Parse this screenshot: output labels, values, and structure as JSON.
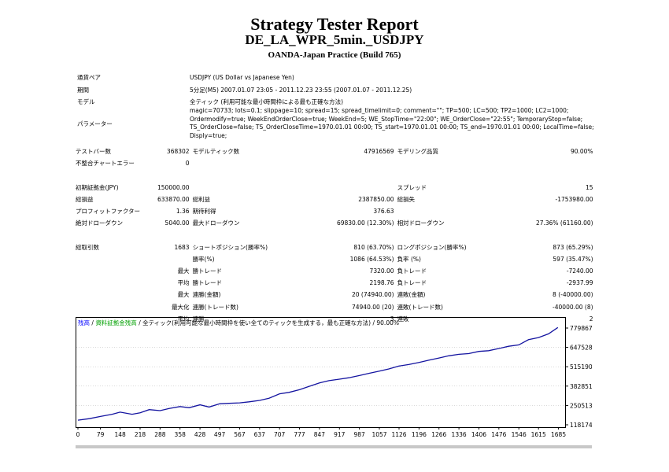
{
  "report": {
    "title": "Strategy Tester Report",
    "subtitle": "DE_LA_WPR_5min._USDJPY",
    "server": "OANDA-Japan Practice (Build 765)"
  },
  "info": {
    "symbol_label": "通貨ペア",
    "symbol_value": "USDJPY (US Dollar vs Japanese Yen)",
    "period_label": "期間",
    "period_value": "5分足(M5) 2007.01.07 23:05 - 2011.12.23 23:55 (2007.01.07 - 2011.12.25)",
    "model_label": "モデル",
    "model_value": "全ティック (利用可能な最小時間枠による最も正確な方法)",
    "params_label": "パラメーター",
    "params_value": "magic=70733; lots=0.1; slippage=10; spread=15; spread_timelimit=0; comment=\"\"; TP=500; LC=500; TP2=1000; LC2=1000;\nOrdermodify=true; WeekEndOrderClose=true; WeekEnd=5; WE_StopTime=\"22:00\"; WE_OrderClose=\"22:55\"; TemporaryStop=false;\nTS_OrderClose=false; TS_OrderCloseTime=1970.01.01 00:00; TS_start=1970.01.01 00:00; TS_end=1970.01.01 00:00; LocalTime=false;\nDisply=true;"
  },
  "stats_rows": [
    [
      "テストバー数",
      "368302",
      "モデルティック数",
      "47916569",
      "モデリング品質",
      "90.00%"
    ],
    [
      "不整合チャートエラー",
      "0",
      "",
      "",
      "",
      ""
    ],
    [
      "",
      "",
      "",
      "",
      "",
      ""
    ],
    [
      "初期証拠金(JPY)",
      "150000.00",
      "",
      "",
      "スプレッド",
      "15"
    ],
    [
      "総損益",
      "633870.00",
      "総利益",
      "2387850.00",
      "総損失",
      "-1753980.00"
    ],
    [
      "プロフィットファクター",
      "1.36",
      "期待利得",
      "376.63",
      "",
      ""
    ],
    [
      "絶対ドローダウン",
      "5040.00",
      "最大ドローダウン",
      "69830.00 (12.30%)",
      "相対ドローダウン",
      "27.36% (61160.00)"
    ],
    [
      "",
      "",
      "",
      "",
      "",
      ""
    ],
    [
      "総取引数",
      "1683",
      "ショートポジション(勝率%)",
      "810 (63.70%)",
      "ロングポジション(勝率%)",
      "873 (65.29%)"
    ],
    [
      "",
      "",
      "勝率(%)",
      "1086 (64.53%)",
      "負率 (%)",
      "597 (35.47%)"
    ],
    [
      "",
      "最大",
      "勝トレード",
      "7320.00",
      "負トレード",
      "-7240.00"
    ],
    [
      "",
      "平均",
      "勝トレード",
      "2198.76",
      "負トレード",
      "-2937.99"
    ],
    [
      "",
      "最大",
      "連勝(金額)",
      "20 (74940.00)",
      "連敗(金額)",
      "8 (-40000.00)"
    ],
    [
      "",
      "最大化",
      "連勝(トレード数)",
      "74940.00 (20)",
      "連敗(トレード数)",
      "-40000.00 (8)"
    ],
    [
      "",
      "平均",
      "連勝",
      "3",
      "連敗",
      "2"
    ]
  ],
  "chart_header": {
    "balance": "残高",
    "sep1": " / ",
    "margin": "資料証拠金残高",
    "sep2": " / ",
    "model_text": "全ティック(利用可能な最小時間枠を使い全てのティックを生成する，最も正確な方法)",
    "sep3": " / ",
    "quality": "90.00%"
  },
  "colors": {
    "balance": "#0000ff",
    "margin": "#00a000",
    "line": "#1414a0",
    "grid": "#b4b4b4"
  },
  "chart_data": {
    "type": "line",
    "x_ticks": [
      "0",
      "79",
      "148",
      "218",
      "288",
      "358",
      "428",
      "497",
      "567",
      "637",
      "707",
      "777",
      "847",
      "917",
      "987",
      "1057",
      "1126",
      "1196",
      "1266",
      "1336",
      "1406",
      "1476",
      "1546",
      "1615",
      "1685"
    ],
    "y_ticks": [
      "779867",
      "647528",
      "515190",
      "382851",
      "250513",
      "118174"
    ],
    "xlim": [
      0,
      1700
    ],
    "ylim": [
      118174,
      779867
    ],
    "series": [
      {
        "x": [
          0,
          40,
          79,
          120,
          148,
          190,
          218,
          250,
          288,
          320,
          358,
          390,
          428,
          460,
          497,
          530,
          567,
          600,
          637,
          670,
          707,
          740,
          777,
          810,
          847,
          880,
          917,
          950,
          987,
          1020,
          1057,
          1090,
          1126,
          1160,
          1196,
          1230,
          1266,
          1300,
          1336,
          1370,
          1406,
          1440,
          1476,
          1510,
          1546,
          1580,
          1615,
          1650,
          1683
        ],
        "y": [
          150000,
          160000,
          175000,
          190000,
          205000,
          190000,
          200000,
          222000,
          215000,
          230000,
          243000,
          235000,
          255000,
          240000,
          262000,
          265000,
          268000,
          275000,
          285000,
          300000,
          330000,
          340000,
          358000,
          380000,
          405000,
          420000,
          430000,
          440000,
          455000,
          470000,
          485000,
          500000,
          520000,
          530000,
          545000,
          560000,
          575000,
          590000,
          600000,
          605000,
          620000,
          625000,
          640000,
          655000,
          665000,
          700000,
          715000,
          740000,
          783870
        ]
      }
    ]
  }
}
